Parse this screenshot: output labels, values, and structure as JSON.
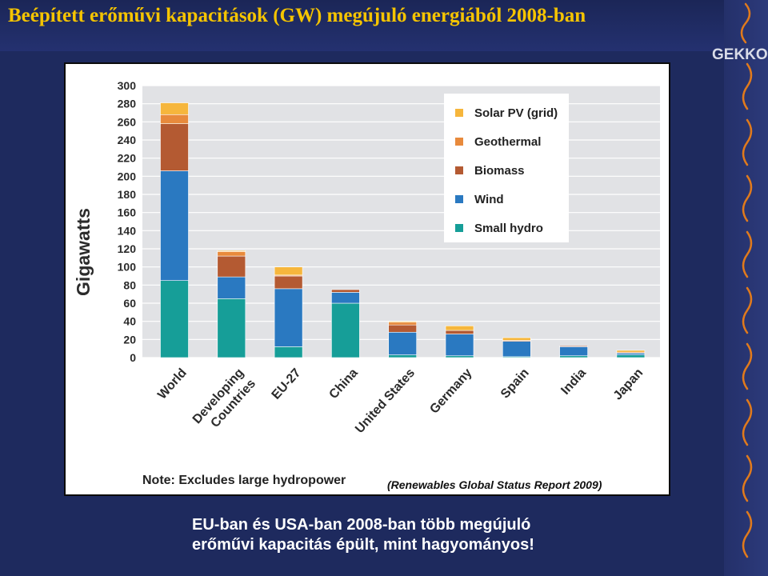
{
  "slide": {
    "title": "Beépített erőművi kapacitások (GW) megújuló energiából 2008-ban",
    "logo": "GEKKO",
    "caption_line1": "EU-ban és USA-ban 2008-ban több megújuló",
    "caption_line2": "erőművi kapacitás épült, mint hagyományos!"
  },
  "chart_data": {
    "type": "bar",
    "stacked": true,
    "ylabel": "Gigawatts",
    "ylim": [
      0,
      300
    ],
    "ytick_step": 20,
    "grid": true,
    "legend_placement": "top-right",
    "categories": [
      "World",
      "Developing Countries",
      "EU-27",
      "China",
      "United States",
      "Germany",
      "Spain",
      "India",
      "Japan"
    ],
    "category_lines": [
      [
        "World"
      ],
      [
        "Developing",
        "Countries"
      ],
      [
        "EU-27"
      ],
      [
        "China"
      ],
      [
        "United States"
      ],
      [
        "Germany"
      ],
      [
        "Spain"
      ],
      [
        "India"
      ],
      [
        "Japan"
      ]
    ],
    "series": [
      {
        "name": "Small hydro",
        "color": "#169e98",
        "values": [
          85,
          65,
          12,
          60,
          3,
          2,
          1,
          2,
          3
        ]
      },
      {
        "name": "Wind",
        "color": "#2a79c1",
        "values": [
          121,
          24,
          64,
          12,
          25,
          24,
          17,
          10,
          2
        ]
      },
      {
        "name": "Biomass",
        "color": "#b45a32",
        "values": [
          52,
          23,
          14,
          3,
          8,
          4,
          1,
          1,
          0
        ]
      },
      {
        "name": "Geothermal",
        "color": "#e88a3c",
        "values": [
          10,
          5,
          1,
          0,
          3,
          0,
          0,
          0,
          1
        ]
      },
      {
        "name": "Solar PV (grid)",
        "color": "#f6b63c",
        "values": [
          13,
          1,
          9,
          0,
          1,
          5,
          3,
          0,
          2
        ]
      }
    ],
    "legend_order": [
      "Solar PV (grid)",
      "Geothermal",
      "Biomass",
      "Wind",
      "Small hydro"
    ],
    "note": "Note: Excludes large hydropower",
    "source": "(Renewables Global Status Report 2009)"
  }
}
